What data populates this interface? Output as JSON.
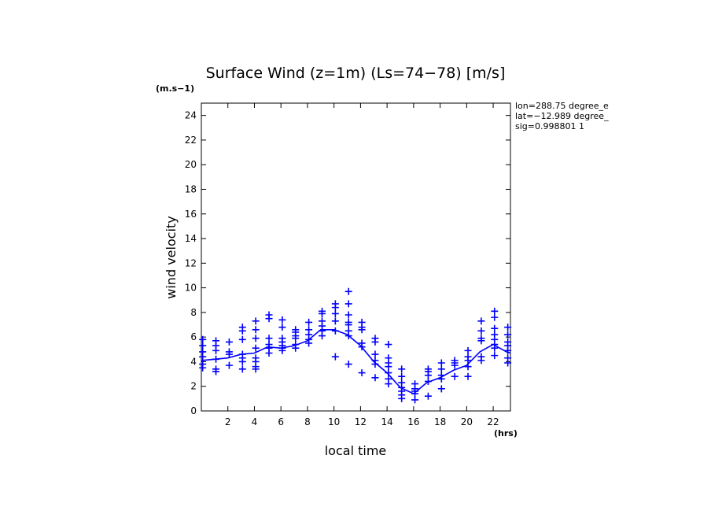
{
  "chart_data": {
    "type": "scatter",
    "title": "Surface Wind (z=1m) (Ls=74−78) [m/s]",
    "units_label": "(m.s−1)",
    "xlabel": "local time",
    "x_unit_label": "(hrs)",
    "ylabel": "wind velocity",
    "xlim": [
      0,
      23.3
    ],
    "ylim": [
      0,
      25
    ],
    "x_ticks": [
      2,
      4,
      6,
      8,
      10,
      12,
      14,
      16,
      18,
      20,
      22
    ],
    "y_ticks": [
      0,
      2,
      4,
      6,
      8,
      10,
      12,
      14,
      16,
      18,
      20,
      22,
      24
    ],
    "x_tick_labels": [
      "2",
      "4",
      "6",
      "8",
      "10",
      "12",
      "14",
      "16",
      "18",
      "20",
      "22"
    ],
    "y_tick_labels": [
      "0",
      "2",
      "4",
      "6",
      "8",
      "10",
      "12",
      "14",
      "16",
      "18",
      "20",
      "22",
      "24"
    ],
    "grid": false,
    "color": "#0000ff",
    "info_lines": [
      "lon=288.75 degree_e",
      "lat=−12.989 degree_",
      "sig=0.998801 1"
    ],
    "series": [
      {
        "type": "scatter",
        "marker": "plus",
        "points": [
          [
            0.1,
            3.5
          ],
          [
            0.1,
            3.8
          ],
          [
            0.1,
            4.4
          ],
          [
            0.1,
            4.8
          ],
          [
            0.1,
            5.3
          ],
          [
            0.1,
            5.8
          ],
          [
            1.1,
            3.2
          ],
          [
            1.1,
            3.4
          ],
          [
            1.1,
            4.2
          ],
          [
            1.1,
            4.9
          ],
          [
            1.1,
            5.3
          ],
          [
            1.1,
            5.7
          ],
          [
            2.1,
            3.7
          ],
          [
            2.1,
            4.6
          ],
          [
            2.1,
            4.8
          ],
          [
            2.1,
            5.6
          ],
          [
            3.1,
            3.4
          ],
          [
            3.1,
            4.0
          ],
          [
            3.1,
            4.3
          ],
          [
            3.1,
            4.6
          ],
          [
            3.1,
            5.8
          ],
          [
            3.1,
            6.5
          ],
          [
            3.1,
            6.8
          ],
          [
            4.1,
            3.4
          ],
          [
            4.1,
            3.6
          ],
          [
            4.1,
            4.0
          ],
          [
            4.1,
            4.3
          ],
          [
            4.1,
            5.1
          ],
          [
            4.1,
            5.9
          ],
          [
            4.1,
            6.6
          ],
          [
            4.1,
            7.3
          ],
          [
            5.1,
            4.7
          ],
          [
            5.1,
            5.1
          ],
          [
            5.1,
            5.4
          ],
          [
            5.1,
            5.9
          ],
          [
            5.1,
            7.5
          ],
          [
            5.1,
            7.8
          ],
          [
            6.1,
            4.9
          ],
          [
            6.1,
            5.1
          ],
          [
            6.1,
            5.3
          ],
          [
            6.1,
            5.6
          ],
          [
            6.1,
            5.9
          ],
          [
            6.1,
            6.8
          ],
          [
            6.1,
            7.4
          ],
          [
            7.1,
            5.1
          ],
          [
            7.1,
            5.4
          ],
          [
            7.1,
            5.9
          ],
          [
            7.1,
            6.1
          ],
          [
            7.1,
            6.4
          ],
          [
            7.1,
            6.6
          ],
          [
            8.1,
            5.5
          ],
          [
            8.1,
            5.8
          ],
          [
            8.1,
            6.2
          ],
          [
            8.1,
            6.6
          ],
          [
            8.1,
            7.2
          ],
          [
            9.1,
            6.1
          ],
          [
            9.1,
            6.5
          ],
          [
            9.1,
            6.9
          ],
          [
            9.1,
            7.3
          ],
          [
            9.1,
            7.9
          ],
          [
            9.1,
            8.1
          ],
          [
            10.1,
            4.4
          ],
          [
            10.1,
            6.5
          ],
          [
            10.1,
            7.3
          ],
          [
            10.1,
            7.9
          ],
          [
            10.1,
            8.4
          ],
          [
            10.1,
            8.7
          ],
          [
            11.1,
            3.8
          ],
          [
            11.1,
            6.1
          ],
          [
            11.1,
            6.5
          ],
          [
            11.1,
            7.0
          ],
          [
            11.1,
            7.2
          ],
          [
            11.1,
            7.8
          ],
          [
            11.1,
            8.7
          ],
          [
            11.1,
            9.7
          ],
          [
            12.1,
            3.1
          ],
          [
            12.1,
            5.2
          ],
          [
            12.1,
            5.5
          ],
          [
            12.1,
            6.6
          ],
          [
            12.1,
            6.8
          ],
          [
            12.1,
            7.2
          ],
          [
            13.1,
            2.7
          ],
          [
            13.1,
            3.8
          ],
          [
            13.1,
            4.1
          ],
          [
            13.1,
            4.6
          ],
          [
            13.1,
            5.6
          ],
          [
            13.1,
            5.9
          ],
          [
            14.1,
            2.2
          ],
          [
            14.1,
            2.6
          ],
          [
            14.1,
            3.1
          ],
          [
            14.1,
            3.6
          ],
          [
            14.1,
            3.9
          ],
          [
            14.1,
            4.3
          ],
          [
            14.1,
            5.4
          ],
          [
            15.1,
            1.0
          ],
          [
            15.1,
            1.3
          ],
          [
            15.1,
            1.6
          ],
          [
            15.1,
            1.9
          ],
          [
            15.1,
            2.3
          ],
          [
            15.1,
            2.8
          ],
          [
            15.1,
            3.4
          ],
          [
            16.1,
            0.9
          ],
          [
            16.1,
            1.4
          ],
          [
            16.1,
            1.6
          ],
          [
            16.1,
            1.8
          ],
          [
            16.1,
            2.2
          ],
          [
            17.1,
            1.2
          ],
          [
            17.1,
            2.4
          ],
          [
            17.1,
            2.9
          ],
          [
            17.1,
            3.2
          ],
          [
            17.1,
            3.4
          ],
          [
            18.1,
            1.8
          ],
          [
            18.1,
            2.6
          ],
          [
            18.1,
            2.9
          ],
          [
            18.1,
            3.4
          ],
          [
            18.1,
            3.9
          ],
          [
            19.1,
            2.8
          ],
          [
            19.1,
            3.7
          ],
          [
            19.1,
            3.9
          ],
          [
            19.1,
            4.1
          ],
          [
            20.1,
            2.8
          ],
          [
            20.1,
            3.6
          ],
          [
            20.1,
            4.1
          ],
          [
            20.1,
            4.4
          ],
          [
            20.1,
            4.9
          ],
          [
            21.1,
            4.1
          ],
          [
            21.1,
            4.4
          ],
          [
            21.1,
            5.7
          ],
          [
            21.1,
            5.9
          ],
          [
            21.1,
            6.5
          ],
          [
            21.1,
            7.3
          ],
          [
            22.1,
            4.5
          ],
          [
            22.1,
            5.1
          ],
          [
            22.1,
            5.4
          ],
          [
            22.1,
            5.8
          ],
          [
            22.1,
            6.2
          ],
          [
            22.1,
            6.7
          ],
          [
            22.1,
            7.6
          ],
          [
            22.1,
            8.1
          ],
          [
            23.1,
            3.9
          ],
          [
            23.1,
            4.3
          ],
          [
            23.1,
            4.9
          ],
          [
            23.1,
            5.3
          ],
          [
            23.1,
            5.6
          ],
          [
            23.1,
            6.2
          ],
          [
            23.1,
            6.8
          ]
        ]
      },
      {
        "type": "line",
        "points": [
          [
            0,
            4.1
          ],
          [
            1,
            4.2
          ],
          [
            2,
            4.3
          ],
          [
            3,
            4.6
          ],
          [
            4,
            4.7
          ],
          [
            5,
            5.2
          ],
          [
            6,
            5.1
          ],
          [
            7,
            5.3
          ],
          [
            8,
            5.7
          ],
          [
            9,
            6.6
          ],
          [
            10,
            6.6
          ],
          [
            11,
            6.2
          ],
          [
            12,
            5.3
          ],
          [
            13,
            4.0
          ],
          [
            14,
            3.1
          ],
          [
            15,
            1.9
          ],
          [
            16,
            1.4
          ],
          [
            17,
            2.3
          ],
          [
            18,
            2.7
          ],
          [
            19,
            3.3
          ],
          [
            20,
            3.7
          ],
          [
            21,
            4.8
          ],
          [
            22,
            5.4
          ],
          [
            23,
            4.8
          ],
          [
            23.3,
            4.7
          ]
        ]
      }
    ]
  }
}
